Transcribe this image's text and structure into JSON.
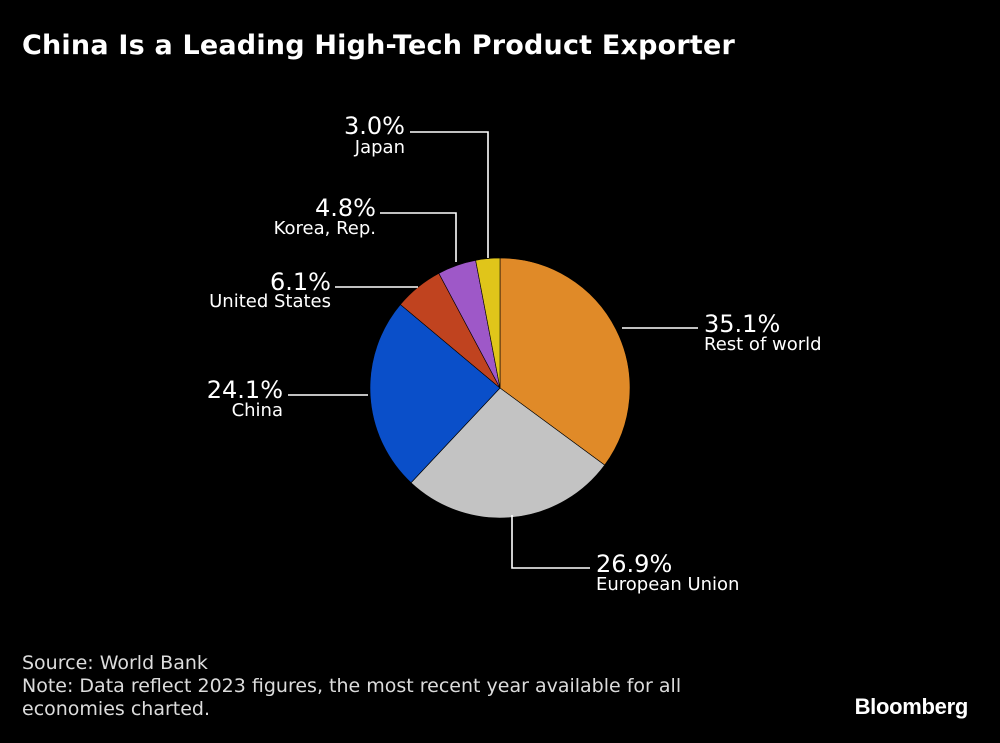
{
  "header": {
    "title": "China Is a Leading High-Tech Product Exporter"
  },
  "chart_data": {
    "type": "pie",
    "title": "China Is a Leading High-Tech Product Exporter",
    "unit": "%",
    "slices": [
      {
        "label": "Rest of world",
        "value": 35.1,
        "display": "35.1%",
        "color": "#E08A28"
      },
      {
        "label": "European Union",
        "value": 26.9,
        "display": "26.9%",
        "color": "#C3C3C3"
      },
      {
        "label": "China",
        "value": 24.1,
        "display": "24.1%",
        "color": "#0A4FC9"
      },
      {
        "label": "United States",
        "value": 6.1,
        "display": "6.1%",
        "color": "#C0431F"
      },
      {
        "label": "Korea, Rep.",
        "value": 4.8,
        "display": "4.8%",
        "color": "#9E58C8"
      },
      {
        "label": "Japan",
        "value": 3.0,
        "display": "3.0%",
        "color": "#E0C51A"
      }
    ]
  },
  "footer": {
    "source": "Source: World Bank",
    "note": "Note: Data reflect 2023 figures, the most recent year available for all economies charted."
  },
  "brand": {
    "name": "Bloomberg"
  }
}
